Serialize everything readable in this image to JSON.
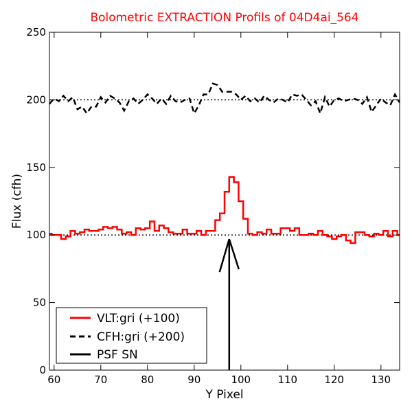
{
  "chart_data": {
    "type": "line",
    "title": "Bolometric EXTRACTION Profils of 04D4ai_564",
    "xlabel": "Y Pixel",
    "ylabel": "Flux (cfh)",
    "xlim": [
      59,
      134
    ],
    "ylim": [
      0,
      250
    ],
    "x_ticks": [
      60,
      70,
      80,
      90,
      100,
      110,
      120,
      130
    ],
    "y_ticks": [
      0,
      50,
      100,
      150,
      200,
      250
    ],
    "grid": false,
    "legend_position": "lower-left",
    "reference_lines": [
      {
        "y": 100,
        "style": "dotted",
        "color": "#000000"
      },
      {
        "y": 200,
        "style": "dotted",
        "color": "#000000"
      }
    ],
    "series": [
      {
        "name": "VLT:gri (+100)",
        "color": "#ff0000",
        "style": "steps",
        "x_start": 59,
        "step": 1,
        "values": [
          101,
          100,
          100,
          97,
          99,
          103,
          101,
          102,
          104,
          103,
          103,
          104,
          106,
          105,
          106,
          104,
          101,
          102,
          100,
          105,
          104,
          105,
          110,
          103,
          107,
          105,
          102,
          101,
          101,
          104,
          101,
          101,
          103,
          100,
          103,
          103,
          111,
          116,
          132,
          143,
          139,
          125,
          112,
          101,
          100,
          102,
          101,
          104,
          101,
          101,
          105,
          105,
          103,
          105,
          100,
          100,
          101,
          100,
          103,
          100,
          99,
          97,
          99,
          100,
          96,
          94,
          102,
          102,
          100,
          99,
          101,
          100,
          103,
          99,
          103,
          100
        ]
      },
      {
        "name": "CFH:gri (+200)",
        "color": "#000000",
        "style": "dashed",
        "x": [
          59,
          60,
          61,
          62,
          63,
          64,
          65,
          66,
          67,
          68,
          69,
          70,
          71,
          72,
          73,
          74,
          75,
          76,
          77,
          78,
          79,
          80,
          81,
          82,
          83,
          84,
          85,
          86,
          87,
          88,
          89,
          90,
          91,
          92,
          93,
          94,
          95,
          96,
          97,
          98,
          99,
          100,
          101,
          102,
          103,
          104,
          105,
          106,
          107,
          108,
          109,
          110,
          111,
          112,
          113,
          114,
          115,
          116,
          117,
          118,
          119,
          120,
          121,
          122,
          123,
          124,
          125,
          126,
          127,
          128,
          129,
          130,
          131,
          132,
          133,
          134
        ],
        "values": [
          197,
          201,
          199,
          203,
          199,
          202,
          193,
          195,
          190,
          195,
          195,
          202,
          198,
          203,
          201,
          198,
          192,
          199,
          201,
          197,
          200,
          204,
          201,
          197,
          201,
          197,
          203,
          199,
          198,
          200,
          201,
          190,
          196,
          204,
          204,
          212,
          211,
          206,
          206,
          206,
          204,
          200,
          203,
          199,
          201,
          198,
          203,
          200,
          198,
          201,
          200,
          198,
          204,
          203,
          204,
          200,
          196,
          199,
          190,
          202,
          195,
          200,
          201,
          199,
          200,
          201,
          200,
          197,
          202,
          191,
          196,
          201,
          198,
          196,
          204,
          198
        ]
      },
      {
        "name": "PSF SN",
        "color": "#000000",
        "style": "arrow",
        "x": 97.5,
        "y_from": 0,
        "y_to": 97
      }
    ]
  }
}
